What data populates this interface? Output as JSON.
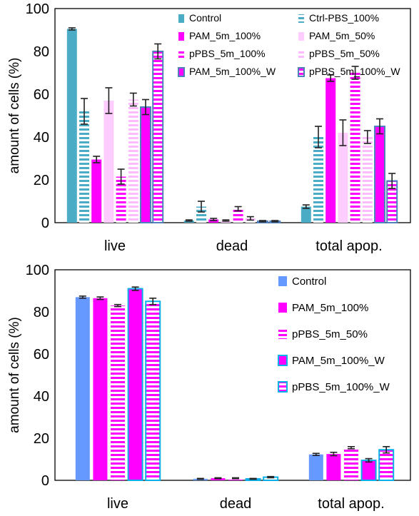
{
  "chart_data": [
    {
      "type": "bar",
      "ylabel": "amount of cells (%)",
      "ylim": [
        0,
        100
      ],
      "yticks": [
        0,
        20,
        40,
        60,
        80,
        100
      ],
      "grid": false,
      "legend_position": "top-right",
      "categories": [
        "live",
        "dead",
        "total apop."
      ],
      "series": [
        {
          "name": "Control",
          "values": [
            90.5,
            1.0,
            7.5
          ],
          "errors": [
            0.5,
            0.3,
            0.8
          ],
          "color": "#4bacc6",
          "pattern": "solid"
        },
        {
          "name": "Ctrl-PBS_100%",
          "values": [
            52,
            7.5,
            40
          ],
          "errors": [
            6,
            2.5,
            5
          ],
          "color": "#4bacc6",
          "pattern": "hstripe"
        },
        {
          "name": "PAM_5m_100%",
          "values": [
            29.5,
            1.5,
            67.5
          ],
          "errors": [
            1.5,
            0.5,
            1.5
          ],
          "color": "#ff00ff",
          "pattern": "solid"
        },
        {
          "name": "PAM_5m_50%",
          "values": [
            57,
            1.0,
            42
          ],
          "errors": [
            6,
            0.3,
            6
          ],
          "color": "#ffccff",
          "pattern": "solid"
        },
        {
          "name": "pPBS_5m_100%",
          "values": [
            21.5,
            6.5,
            70
          ],
          "errors": [
            3.5,
            1,
            3
          ],
          "color": "#ff00ff",
          "pattern": "hstripe"
        },
        {
          "name": "pPBS_5m_50%",
          "values": [
            57.5,
            2.0,
            40
          ],
          "errors": [
            3,
            0.8,
            3
          ],
          "color": "#ffccff",
          "pattern": "hstripe"
        },
        {
          "name": "PAM_5m_100%_W",
          "values": [
            54,
            0.7,
            45
          ],
          "errors": [
            3.5,
            0.3,
            3.5
          ],
          "color": "#ff00ff",
          "pattern": "solid-bordered"
        },
        {
          "name": "pPBS_5m_100%_W",
          "values": [
            80,
            0.7,
            19.5
          ],
          "errors": [
            3.5,
            0.3,
            3.5
          ],
          "color": "#ff00ff",
          "pattern": "hstripe-bordered"
        }
      ]
    },
    {
      "type": "bar",
      "ylabel": "amount of cells (%)",
      "ylim": [
        0,
        100
      ],
      "yticks": [
        0,
        20,
        40,
        60,
        80,
        100
      ],
      "grid": false,
      "legend_position": "top-right",
      "categories": [
        "live",
        "dead",
        "total apop."
      ],
      "series": [
        {
          "name": "Control",
          "values": [
            87,
            0.7,
            12.3
          ],
          "errors": [
            0.5,
            0.2,
            0.5
          ],
          "color": "#6699ff",
          "pattern": "solid"
        },
        {
          "name": "PAM_5m_100%",
          "values": [
            86.5,
            1.0,
            12.5
          ],
          "errors": [
            0.6,
            0.2,
            0.8
          ],
          "color": "#ff00ff",
          "pattern": "solid"
        },
        {
          "name": "pPBS_5m_50%",
          "values": [
            83,
            1.0,
            15.5
          ],
          "errors": [
            0.5,
            0.2,
            0.5
          ],
          "color": "#ff00ff",
          "pattern": "hstripe"
        },
        {
          "name": "PAM_5m_100%_W",
          "values": [
            91,
            0.7,
            9.5
          ],
          "errors": [
            0.8,
            0.2,
            0.8
          ],
          "color": "#ff00ff",
          "pattern": "solid-bordered"
        },
        {
          "name": "pPBS_5m_100%_W",
          "values": [
            85,
            1.5,
            14.5
          ],
          "errors": [
            1.5,
            0.3,
            1.5
          ],
          "color": "#ff00ff",
          "pattern": "hstripe-bordered"
        }
      ]
    }
  ]
}
